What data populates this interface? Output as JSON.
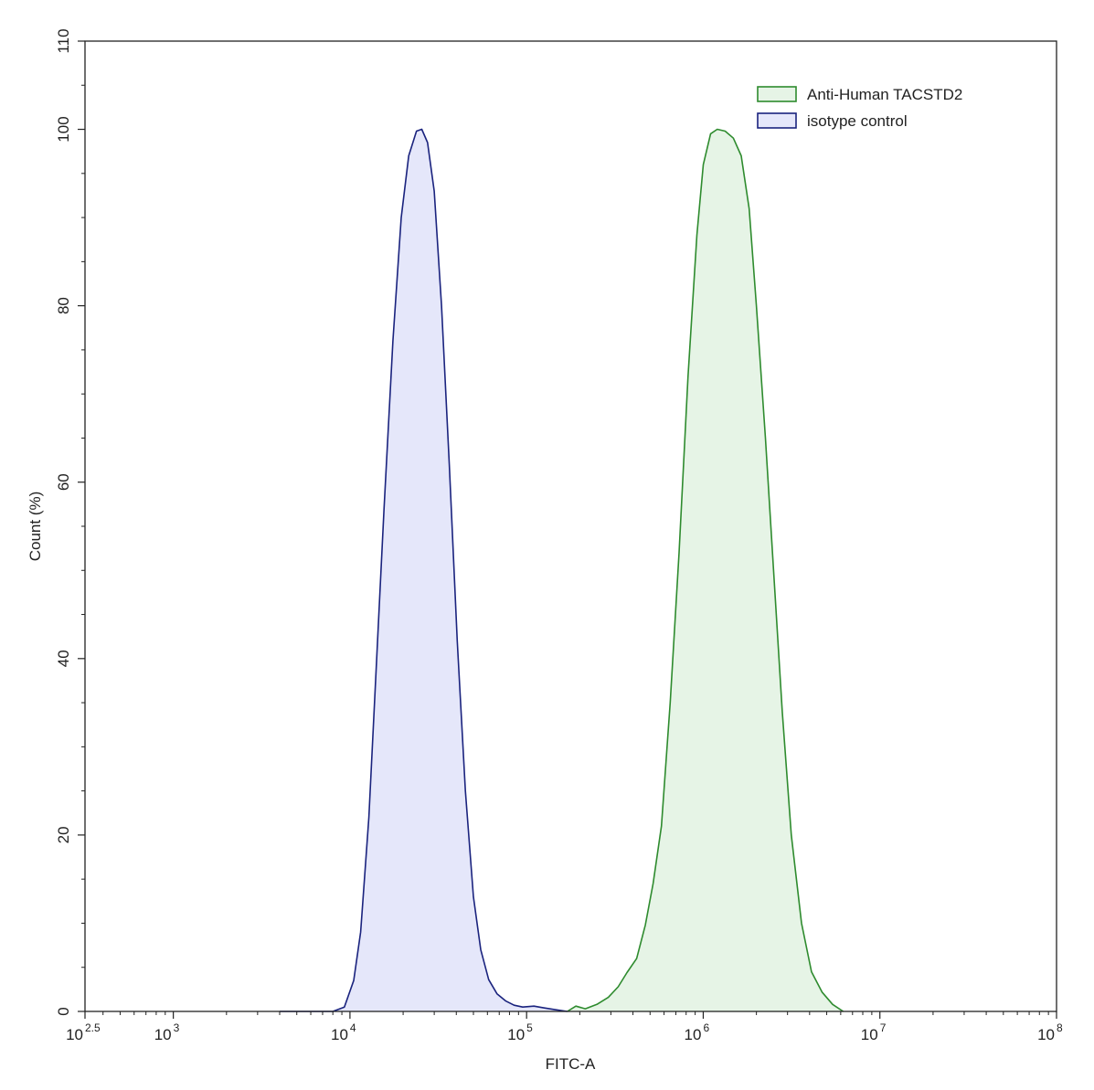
{
  "chart_data": {
    "type": "area",
    "xlabel": "FITC-A",
    "ylabel": "Count (%)",
    "x_scale": "log10",
    "xlim": [
      316.23,
      100000000
    ],
    "ylim": [
      0,
      110
    ],
    "x_ticks": [
      {
        "value": 316.23,
        "base": "10",
        "exp": "2.5"
      },
      {
        "value": 1000,
        "base": "10",
        "exp": "3"
      },
      {
        "value": 10000,
        "base": "10",
        "exp": "4"
      },
      {
        "value": 100000,
        "base": "10",
        "exp": "5"
      },
      {
        "value": 1000000,
        "base": "10",
        "exp": "6"
      },
      {
        "value": 10000000,
        "base": "10",
        "exp": "7"
      },
      {
        "value": 100000000,
        "base": "10",
        "exp": "8"
      }
    ],
    "y_ticks": [
      "0",
      "20",
      "40",
      "60",
      "80",
      "100",
      "110"
    ],
    "y_tick_values": [
      0,
      20,
      40,
      60,
      80,
      100,
      110
    ],
    "grid": false,
    "legend_position": "top-right",
    "series": [
      {
        "name": "Anti-Human TACSTD2",
        "line_color": "#2e8b2e",
        "fill_color": "#e6f4e6",
        "points": [
          [
            170000,
            0
          ],
          [
            190000,
            0.6
          ],
          [
            215000,
            0.3
          ],
          [
            250000,
            0.8
          ],
          [
            290000,
            1.6
          ],
          [
            330000,
            2.8
          ],
          [
            370000,
            4.4
          ],
          [
            420000,
            6.0
          ],
          [
            470000,
            9.8
          ],
          [
            520000,
            14.5
          ],
          [
            580000,
            21
          ],
          [
            650000,
            35
          ],
          [
            730000,
            52
          ],
          [
            820000,
            72
          ],
          [
            920000,
            88
          ],
          [
            1000000,
            96
          ],
          [
            1100000,
            99.5
          ],
          [
            1200000,
            100
          ],
          [
            1330000,
            99.8
          ],
          [
            1480000,
            99
          ],
          [
            1640000,
            97
          ],
          [
            1820000,
            91
          ],
          [
            2000000,
            80
          ],
          [
            2250000,
            65
          ],
          [
            2500000,
            50
          ],
          [
            2800000,
            34
          ],
          [
            3150000,
            20
          ],
          [
            3600000,
            10
          ],
          [
            4100000,
            4.5
          ],
          [
            4700000,
            2.2
          ],
          [
            5400000,
            0.8
          ],
          [
            6200000,
            0
          ]
        ]
      },
      {
        "name": "isotype control",
        "line_color": "#1a237e",
        "fill_color": "#e5e7fa",
        "points": [
          [
            4000,
            0
          ],
          [
            8000,
            0
          ],
          [
            9300,
            0.5
          ],
          [
            10500,
            3.5
          ],
          [
            11500,
            9
          ],
          [
            12800,
            22
          ],
          [
            14000,
            38
          ],
          [
            15600,
            57
          ],
          [
            17500,
            76
          ],
          [
            19500,
            90
          ],
          [
            21500,
            97
          ],
          [
            23800,
            99.8
          ],
          [
            25500,
            100
          ],
          [
            27500,
            98.5
          ],
          [
            30000,
            93
          ],
          [
            33000,
            80
          ],
          [
            36500,
            62
          ],
          [
            40500,
            42
          ],
          [
            45000,
            25
          ],
          [
            50000,
            13
          ],
          [
            55000,
            7
          ],
          [
            61000,
            3.6
          ],
          [
            68000,
            2.0
          ],
          [
            76000,
            1.2
          ],
          [
            85000,
            0.7
          ],
          [
            95000,
            0.5
          ],
          [
            110000,
            0.6
          ],
          [
            125000,
            0.4
          ],
          [
            145000,
            0.2
          ],
          [
            170000,
            0
          ]
        ]
      }
    ]
  }
}
